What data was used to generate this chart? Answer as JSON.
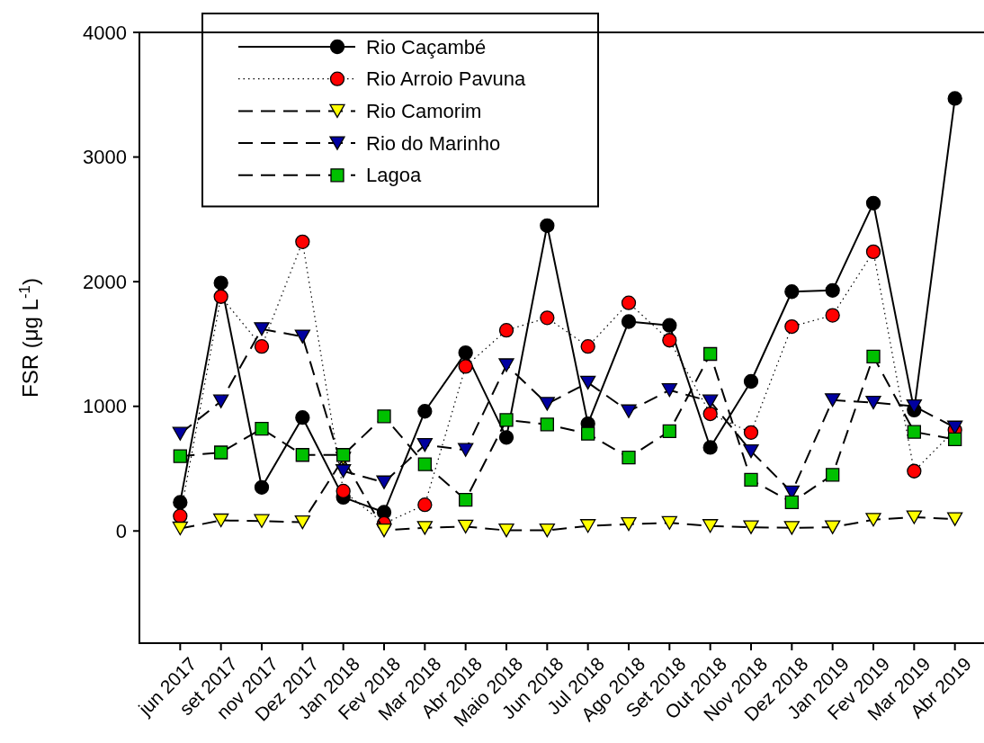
{
  "chart_data": {
    "type": "line",
    "ylabel": "FSR (μg L$^{-1}$)",
    "categories": [
      "jun 2017",
      "set 2017",
      "nov 2017",
      "Dez 2017",
      "Jan 2018",
      "Fev 2018",
      "Mar 2018",
      "Abr 2018",
      "Maio 2018",
      "Jun 2018",
      "Jul 2018",
      "Ago 2018",
      "Set 2018",
      "Out 2018",
      "Nov 2018",
      "Dez 2018",
      "Jan 2019",
      "Fev 2019",
      "Mar 2019",
      "Abr 2019"
    ],
    "ylim": [
      -900,
      4000
    ],
    "yticks": [
      0,
      1000,
      2000,
      3000,
      4000
    ],
    "legend": "top left",
    "series": [
      {
        "name": "Rio Caçambé",
        "color": "#000000",
        "marker": "circle",
        "line_style": "solid",
        "values": [
          230,
          1990,
          350,
          910,
          270,
          150,
          960,
          1430,
          750,
          2450,
          860,
          1680,
          1650,
          670,
          1200,
          1920,
          1930,
          2630,
          970,
          3470
        ]
      },
      {
        "name": "Rio Arroio Pavuna",
        "color": "#ff0000",
        "marker": "circle",
        "line_style": "dotted",
        "values": [
          120,
          1880,
          1480,
          2320,
          320,
          60,
          210,
          1320,
          1610,
          1710,
          1480,
          1830,
          1530,
          940,
          790,
          1640,
          1730,
          2240,
          480,
          810
        ]
      },
      {
        "name": "Rio Camorim",
        "color": "#ffff00",
        "marker": "triangle",
        "line_style": "dashed",
        "values": [
          20,
          85,
          80,
          70,
          580,
          5,
          25,
          35,
          5,
          5,
          40,
          55,
          65,
          40,
          30,
          25,
          30,
          90,
          110,
          95
        ]
      },
      {
        "name": "Rio do Marinho",
        "color": "#0000a0",
        "marker": "triangle",
        "line_style": "dashed",
        "values": [
          780,
          1040,
          1620,
          1560,
          480,
          390,
          690,
          650,
          1330,
          1020,
          1190,
          960,
          1130,
          1040,
          640,
          310,
          1050,
          1030,
          1000,
          830
        ]
      },
      {
        "name": "Lagoa",
        "color": "#00c000",
        "marker": "square",
        "line_style": "dashed",
        "values": [
          600,
          630,
          820,
          610,
          610,
          920,
          535,
          250,
          890,
          855,
          780,
          590,
          800,
          1420,
          410,
          230,
          450,
          1400,
          795,
          735
        ]
      }
    ]
  }
}
